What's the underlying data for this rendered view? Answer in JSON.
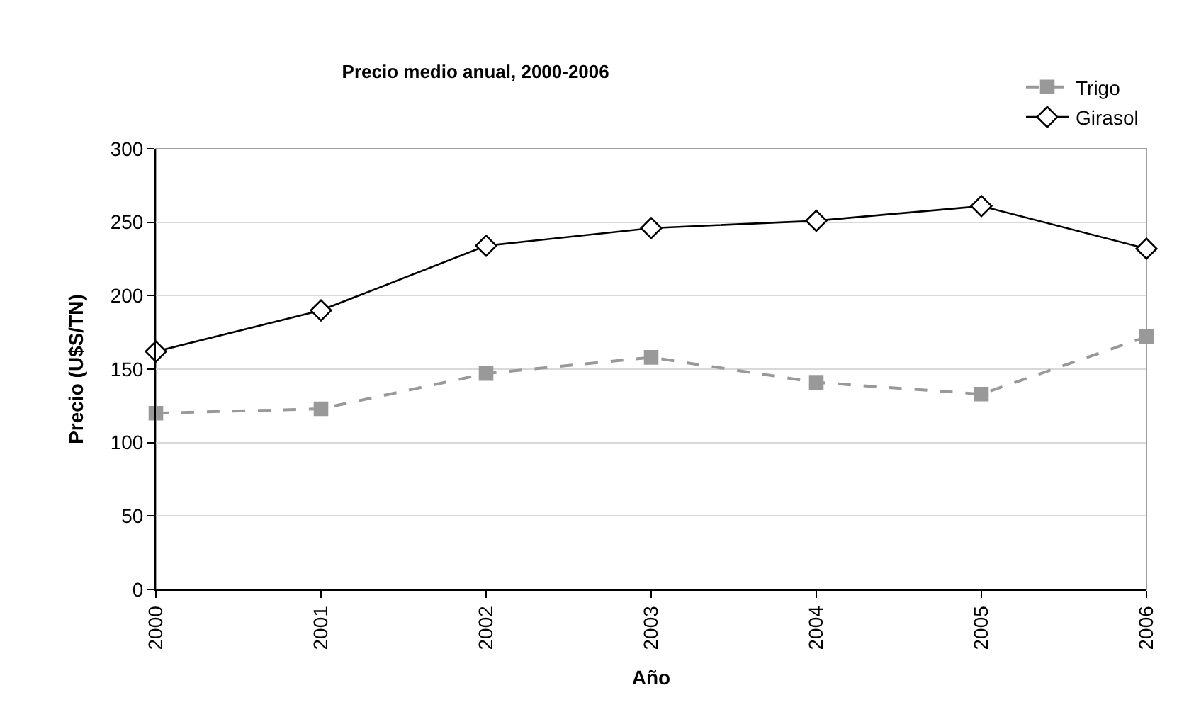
{
  "chart_data": {
    "type": "line",
    "title": "Precio medio anual, 2000-2006",
    "xlabel": "Año",
    "ylabel": "Precio (U$S/TN)",
    "categories": [
      "2000",
      "2001",
      "2002",
      "2003",
      "2004",
      "2005",
      "2006"
    ],
    "series": [
      {
        "name": "Trigo",
        "color": "#999999",
        "marker": "square",
        "line_style": "dashed",
        "values": [
          120,
          123,
          147,
          158,
          141,
          133,
          172
        ]
      },
      {
        "name": "Girasol",
        "color": "#000000",
        "marker": "diamond",
        "line_style": "solid",
        "values": [
          162,
          190,
          234,
          246,
          251,
          261,
          232
        ]
      }
    ],
    "ylim": [
      0,
      300
    ],
    "yticks": [
      0,
      50,
      100,
      150,
      200,
      250,
      300
    ],
    "grid": "y",
    "legend": "top right"
  }
}
